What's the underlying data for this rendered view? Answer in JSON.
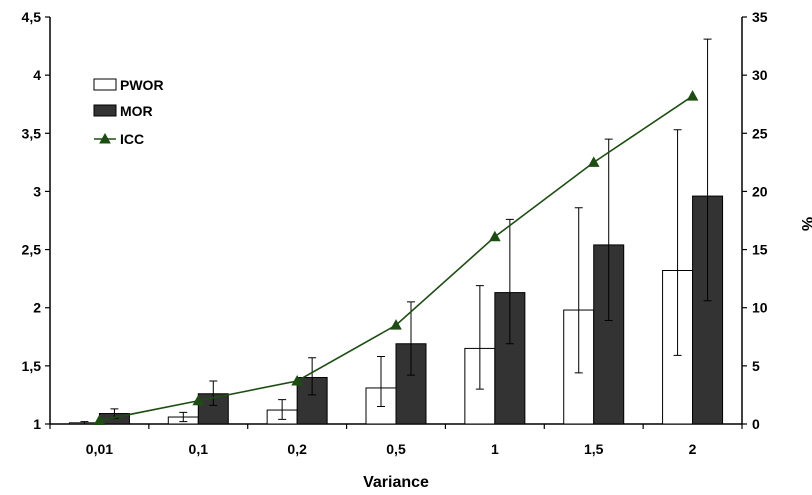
{
  "chart_data": {
    "type": "bar",
    "categories": [
      "0,01",
      "0,1",
      "0,2",
      "0,5",
      "1",
      "1,5",
      "2"
    ],
    "xlabel": "Variance",
    "ylabel_right": "%",
    "ylim_left": [
      1,
      4.5
    ],
    "yticks_left": [
      "1",
      "1,5",
      "2",
      "2,5",
      "3",
      "3,5",
      "4",
      "4,5"
    ],
    "ylim_right": [
      0,
      35
    ],
    "yticks_right": [
      "0",
      "5",
      "10",
      "15",
      "20",
      "25",
      "30",
      "35"
    ],
    "grid": false,
    "legend_position": "top-left",
    "series": [
      {
        "name": "PWOR",
        "kind": "bar",
        "axis": "left",
        "color": "#ffffff",
        "values": [
          1.01,
          1.06,
          1.12,
          1.31,
          1.65,
          1.98,
          2.32
        ],
        "error_low": [
          1.0,
          1.02,
          1.04,
          1.15,
          1.3,
          1.44,
          1.59
        ],
        "error_high": [
          1.02,
          1.1,
          1.21,
          1.58,
          2.19,
          2.86,
          3.53
        ]
      },
      {
        "name": "MOR",
        "kind": "bar",
        "axis": "left",
        "color": "#333333",
        "values": [
          1.09,
          1.26,
          1.4,
          1.69,
          2.13,
          2.54,
          2.96
        ],
        "error_low": [
          1.05,
          1.16,
          1.25,
          1.42,
          1.69,
          1.89,
          2.06
        ],
        "error_high": [
          1.13,
          1.37,
          1.57,
          2.05,
          2.76,
          3.45,
          4.31
        ]
      },
      {
        "name": "ICC",
        "kind": "line",
        "axis": "right",
        "color": "#1e4d14",
        "marker": "triangle",
        "values": [
          0.3,
          2.0,
          3.7,
          8.5,
          16.1,
          22.5,
          28.2
        ]
      }
    ]
  }
}
